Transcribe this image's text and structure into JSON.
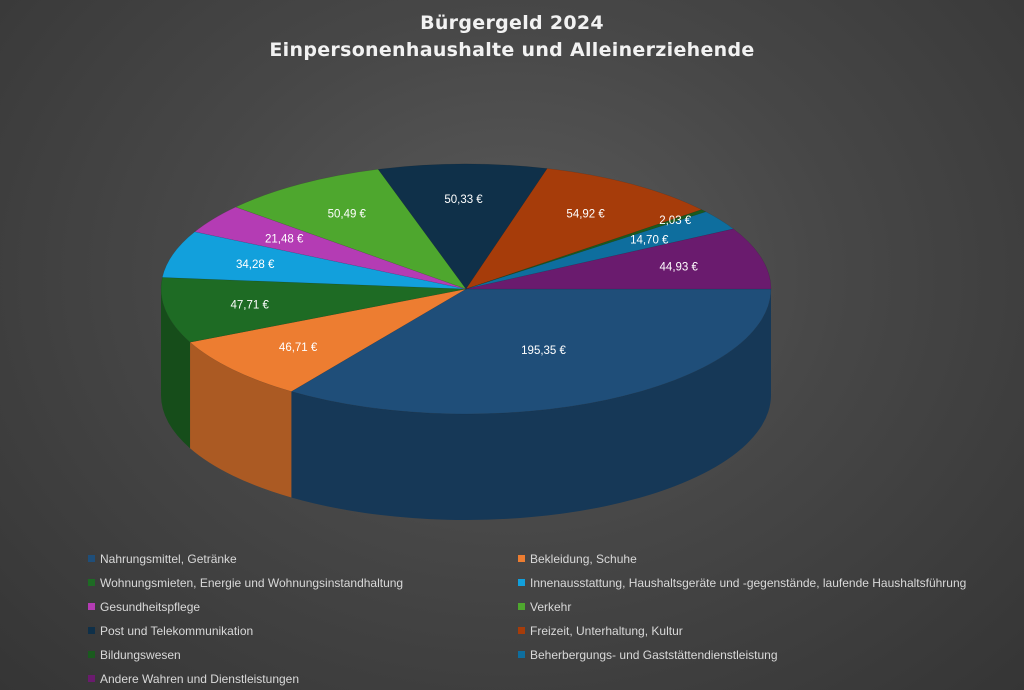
{
  "chart_data": {
    "type": "pie",
    "title": [
      "Bürgergeld 2024",
      "Einpersonenhaushalte und Alleinerziehende"
    ],
    "slices": [
      {
        "name": "Nahrungsmittel, Getränke",
        "value": 195.35,
        "label": "195,35 €",
        "color": "#1f4e79"
      },
      {
        "name": "Bekleidung, Schuhe",
        "value": 46.71,
        "label": "46,71 €",
        "color": "#ed7d31"
      },
      {
        "name": "Wohnungsmieten, Energie und Wohnungsinstandhaltung",
        "value": 47.71,
        "label": "47,71 €",
        "color": "#1e6b24"
      },
      {
        "name": "Innenausstattung, Haushaltsgeräte und -gegenstände, laufende Haushaltsführung",
        "value": 34.28,
        "label": "34,28 €",
        "color": "#12a0dc"
      },
      {
        "name": "Gesundheitspflege",
        "value": 21.48,
        "label": "21,48 €",
        "color": "#b43cb4"
      },
      {
        "name": "Verkehr",
        "value": 50.49,
        "label": "50,49 €",
        "color": "#4ea72e"
      },
      {
        "name": "Post und Telekommunikation",
        "value": 50.33,
        "label": "50,33 €",
        "color": "#0f3049"
      },
      {
        "name": "Freizeit, Unterhaltung, Kultur",
        "value": 54.92,
        "label": "54,92 €",
        "color": "#a63c0a"
      },
      {
        "name": "Bildungswesen",
        "value": 2.03,
        "label": "2,03 €",
        "color": "#1a5a1e"
      },
      {
        "name": "Beherbergungs- und Gaststättendienstleistung",
        "value": 14.7,
        "label": "14,70 €",
        "color": "#0e6e9e"
      },
      {
        "name": "Andere Wahren und Dienstleistungen",
        "value": 44.93,
        "label": "44,93 €",
        "color": "#6a1b6e"
      }
    ],
    "legend_position": "bottom"
  }
}
